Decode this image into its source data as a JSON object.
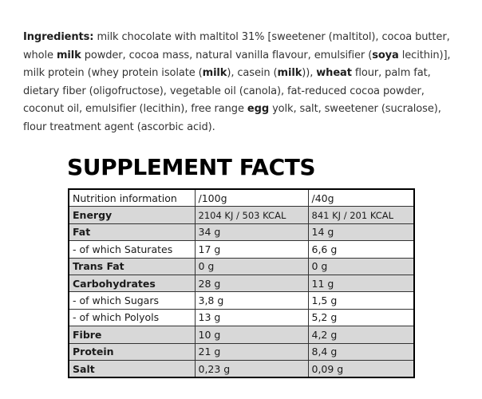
{
  "ingredients": {
    "segments": [
      {
        "text": "Ingredients:",
        "bold": true
      },
      {
        "text": " milk chocolate with maltitol 31% [sweetener (maltitol), cocoa butter, whole ",
        "bold": false
      },
      {
        "text": "milk",
        "bold": true
      },
      {
        "text": " powder, cocoa mass, natural vanilla flavour, emulsifier (",
        "bold": false
      },
      {
        "text": "soya",
        "bold": true
      },
      {
        "text": " lecithin)], milk protein (whey protein isolate (",
        "bold": false
      },
      {
        "text": "milk",
        "bold": true
      },
      {
        "text": "), casein (",
        "bold": false
      },
      {
        "text": "milk",
        "bold": true
      },
      {
        "text": ")), ",
        "bold": false
      },
      {
        "text": "wheat",
        "bold": true
      },
      {
        "text": " flour, palm fat, dietary fiber (oligofructose), vegetable oil (canola), fat-reduced cocoa powder, coconut oil, emulsifier (lecithin), free range ",
        "bold": false
      },
      {
        "text": "egg",
        "bold": true
      },
      {
        "text": " yolk, salt, sweetener (sucralose), flour treatment agent (ascorbic acid).",
        "bold": false
      }
    ]
  },
  "facts": {
    "title": "SUPPLEMENT FACTS",
    "header": [
      "Nutrition information",
      "/100g",
      "/40g"
    ],
    "rows": [
      {
        "label": "Energy",
        "per100": "2104 KJ / 503 KCAL",
        "per40": "841 KJ / 201 KCAL",
        "bold": true,
        "shaded": true
      },
      {
        "label": "Fat",
        "per100": "34 g",
        "per40": "14 g",
        "bold": true,
        "shaded": true
      },
      {
        "label": "- of which Saturates",
        "per100": "17 g",
        "per40": "6,6 g",
        "bold": false,
        "shaded": false
      },
      {
        "label": "Trans Fat",
        "per100": "0 g",
        "per40": "0 g",
        "bold": true,
        "shaded": true
      },
      {
        "label": "Carbohydrates",
        "per100": "28 g",
        "per40": "11 g",
        "bold": true,
        "shaded": true
      },
      {
        "label": "- of which Sugars",
        "per100": "3,8 g",
        "per40": "1,5 g",
        "bold": false,
        "shaded": false
      },
      {
        "label": "- of which Polyols",
        "per100": "13 g",
        "per40": "5,2 g",
        "bold": false,
        "shaded": false
      },
      {
        "label": "Fibre",
        "per100": "10 g",
        "per40": "4,2 g",
        "bold": true,
        "shaded": true
      },
      {
        "label": "Protein",
        "per100": "21 g",
        "per40": "8,4 g",
        "bold": true,
        "shaded": true
      },
      {
        "label": "Salt",
        "per100": "0,23 g",
        "per40": "0,09 g",
        "bold": true,
        "shaded": true
      }
    ]
  }
}
